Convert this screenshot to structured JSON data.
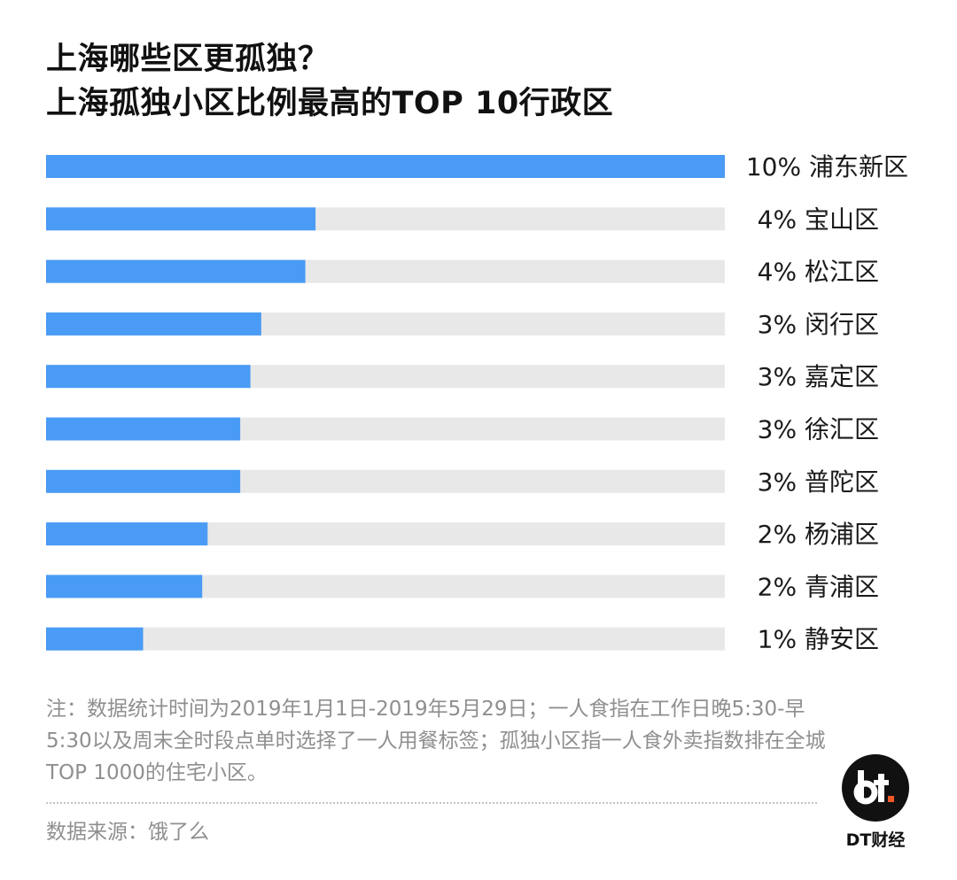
{
  "title_line1": "上海哪些区更孤独？",
  "title_line2": "上海孤独小区比例最高的TOP 10行政区",
  "chart_data": {
    "type": "bar",
    "orientation": "horizontal",
    "categories": [
      "浦东新区",
      "宝山区",
      "松江区",
      "闵行区",
      "嘉定区",
      "徐汇区",
      "普陀区",
      "杨浦区",
      "青浦区",
      "静安区"
    ],
    "values": [
      10,
      4,
      4,
      3,
      3,
      3,
      3,
      2,
      2,
      1
    ],
    "value_labels": [
      "10%",
      "4%",
      "4%",
      "3%",
      "3%",
      "3%",
      "3%",
      "2%",
      "2%",
      "1%"
    ],
    "bar_fractions": [
      1.0,
      0.397,
      0.382,
      0.317,
      0.301,
      0.286,
      0.286,
      0.238,
      0.23,
      0.143
    ],
    "bar_color": "#4a9bf5",
    "track_color": "#e8e8e8",
    "grid": false,
    "legend": false
  },
  "note": "注：数据统计时间为2019年1月1日-2019年5月29日；一人食指在工作日晚5:30-早5:30以及周末全时段点单时选择了一人用餐标签；孤独小区指一人食外卖指数排在全城TOP 1000的住宅小区。",
  "source": "数据来源：饿了么",
  "brand": "DT财经",
  "logo_icon": "dt-logo-icon"
}
